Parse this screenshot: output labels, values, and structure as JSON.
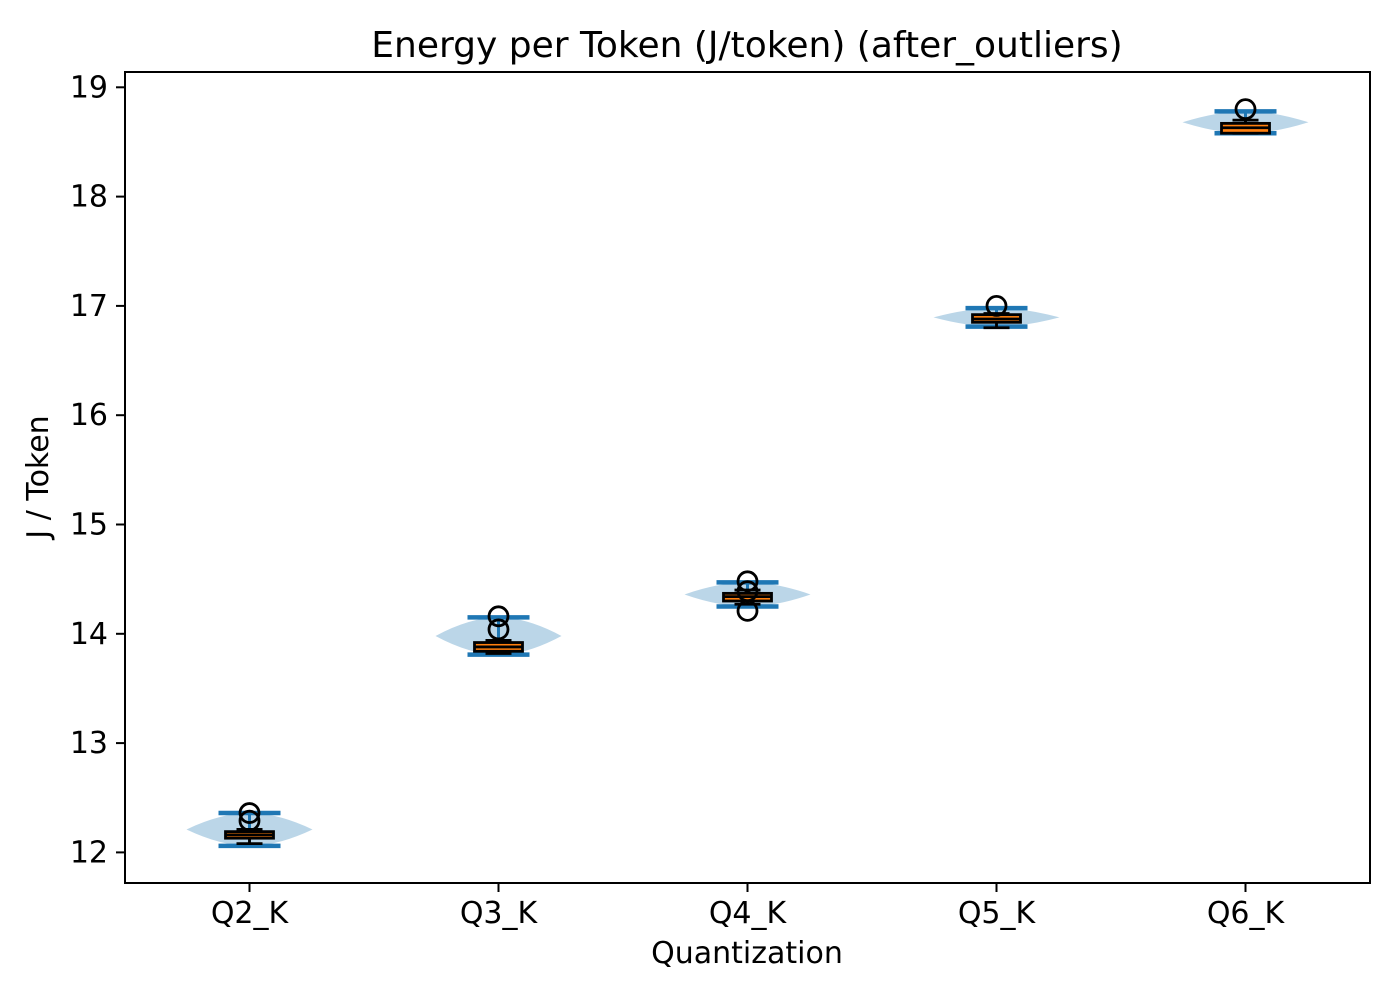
{
  "chart_data": {
    "type": "violin+box",
    "title": "Energy per Token (J/token) (after_outliers)",
    "xlabel": "Quantization",
    "ylabel": "J / Token",
    "categories": [
      "Q2_K",
      "Q3_K",
      "Q4_K",
      "Q5_K",
      "Q6_K"
    ],
    "yticks": [
      12,
      13,
      14,
      15,
      16,
      17,
      18,
      19
    ],
    "ylim": [
      11.72,
      19.14
    ],
    "grid": false,
    "legend": "none",
    "colors": {
      "violin_fill": "rgba(31,119,180,0.3)",
      "violin_line": "#1f77b4",
      "box_face": "#ff7f0e",
      "box_edge": "#000000",
      "median_line": "#000000",
      "whisker": "#000000",
      "flier": "#000000",
      "axis": "#000000"
    },
    "series": [
      {
        "category": "Q2_K",
        "violin_min": 12.06,
        "violin_max": 12.36,
        "whisker_low": 12.08,
        "q1": 12.13,
        "median": 12.16,
        "q3": 12.19,
        "whisker_high": 12.21,
        "outliers": [
          12.36,
          12.29
        ]
      },
      {
        "category": "Q3_K",
        "violin_min": 13.81,
        "violin_max": 14.15,
        "whisker_low": 13.82,
        "q1": 13.84,
        "median": 13.88,
        "q3": 13.92,
        "whisker_high": 13.94,
        "outliers": [
          14.16,
          14.04
        ]
      },
      {
        "category": "Q4_K",
        "violin_min": 14.25,
        "violin_max": 14.47,
        "whisker_low": 14.27,
        "q1": 14.3,
        "median": 14.34,
        "q3": 14.37,
        "whisker_high": 14.4,
        "outliers": [
          14.48,
          14.39,
          14.21
        ]
      },
      {
        "category": "Q5_K",
        "violin_min": 16.81,
        "violin_max": 16.98,
        "whisker_low": 16.8,
        "q1": 16.85,
        "median": 16.88,
        "q3": 16.92,
        "whisker_high": 16.93,
        "outliers": [
          17.0
        ]
      },
      {
        "category": "Q6_K",
        "violin_min": 18.58,
        "violin_max": 18.78,
        "whisker_low": 18.58,
        "q1": 18.58,
        "median": 18.63,
        "q3": 18.67,
        "whisker_high": 18.7,
        "outliers": [
          18.8
        ]
      }
    ]
  }
}
